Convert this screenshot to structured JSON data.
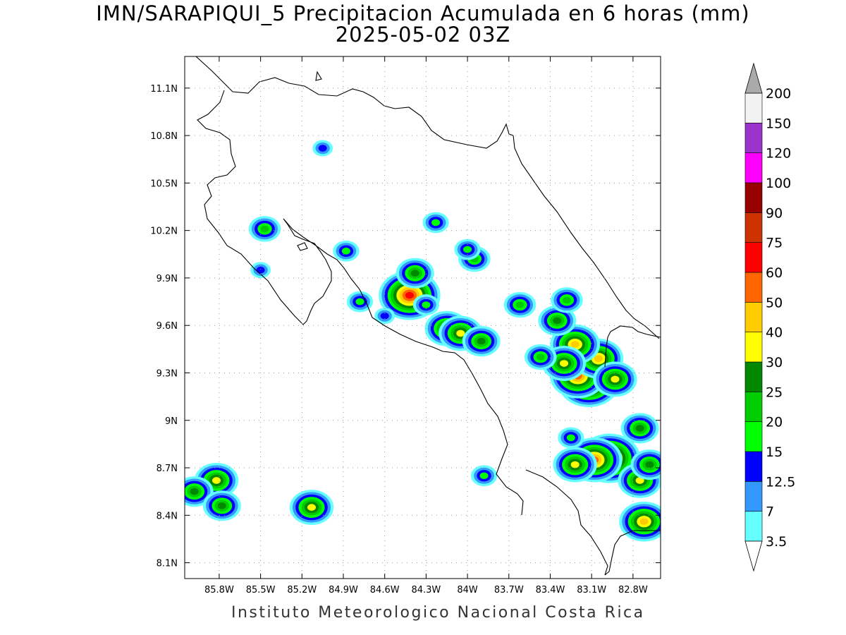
{
  "title": {
    "line1": "IMN/SARAPIQUI_5 Precipitacion Acumulada en 6 horas (mm)",
    "line2": "2025-05-02 03Z"
  },
  "footer": "Instituto Meteorologico Nacional Costa Rica",
  "map": {
    "lon_range": [
      -86.05,
      -82.6
    ],
    "lat_range": [
      8.0,
      11.3
    ],
    "lon_ticks": [
      {
        "v": -85.8,
        "label": "85.8W"
      },
      {
        "v": -85.5,
        "label": "85.5W"
      },
      {
        "v": -85.2,
        "label": "85.2W"
      },
      {
        "v": -84.9,
        "label": "84.9W"
      },
      {
        "v": -84.6,
        "label": "84.6W"
      },
      {
        "v": -84.3,
        "label": "84.3W"
      },
      {
        "v": -84.0,
        "label": "84W"
      },
      {
        "v": -83.7,
        "label": "83.7W"
      },
      {
        "v": -83.4,
        "label": "83.4W"
      },
      {
        "v": -83.1,
        "label": "83.1W"
      },
      {
        "v": -82.8,
        "label": "82.8W"
      }
    ],
    "lat_ticks": [
      {
        "v": 11.1,
        "label": "11.1N"
      },
      {
        "v": 10.8,
        "label": "10.8N"
      },
      {
        "v": 10.5,
        "label": "10.5N"
      },
      {
        "v": 10.2,
        "label": "10.2N"
      },
      {
        "v": 9.9,
        "label": "9.9N"
      },
      {
        "v": 9.6,
        "label": "9.6N"
      },
      {
        "v": 9.3,
        "label": "9.3N"
      },
      {
        "v": 9.0,
        "label": "9N"
      },
      {
        "v": 8.7,
        "label": "8.7N"
      },
      {
        "v": 8.4,
        "label": "8.4N"
      },
      {
        "v": 8.1,
        "label": "8.1N"
      }
    ],
    "grid": "dotted"
  },
  "colorbar": {
    "levels": [
      {
        "label": "3.5",
        "color": "#66ffff"
      },
      {
        "label": "7",
        "color": "#3399ff"
      },
      {
        "label": "12.5",
        "color": "#0000ff"
      },
      {
        "label": "15",
        "color": "#00ff00"
      },
      {
        "label": "20",
        "color": "#00cc00"
      },
      {
        "label": "25",
        "color": "#008800"
      },
      {
        "label": "30",
        "color": "#ffff00"
      },
      {
        "label": "40",
        "color": "#ffcc00"
      },
      {
        "label": "50",
        "color": "#ff6600"
      },
      {
        "label": "60",
        "color": "#ff0000"
      },
      {
        "label": "75",
        "color": "#cc3300"
      },
      {
        "label": "90",
        "color": "#990000"
      },
      {
        "label": "100",
        "color": "#ff00ff"
      },
      {
        "label": "120",
        "color": "#9933cc"
      },
      {
        "label": "150",
        "color": "#f2f2f2"
      },
      {
        "label": "200",
        "color": "#aaaaaa"
      }
    ]
  },
  "cells": [
    {
      "lon": -83.12,
      "lat": 9.24,
      "level": 9
    },
    {
      "lon": -83.2,
      "lat": 9.28,
      "level": 8
    },
    {
      "lon": -83.05,
      "lat": 9.39,
      "level": 7
    },
    {
      "lon": -83.22,
      "lat": 9.48,
      "level": 7
    },
    {
      "lon": -83.3,
      "lat": 9.36,
      "level": 6
    },
    {
      "lon": -82.97,
      "lat": 8.76,
      "level": 9
    },
    {
      "lon": -83.08,
      "lat": 8.75,
      "level": 8
    },
    {
      "lon": -83.22,
      "lat": 8.72,
      "level": 6
    },
    {
      "lon": -82.93,
      "lat": 9.26,
      "level": 6
    },
    {
      "lon": -82.72,
      "lat": 8.36,
      "level": 7
    },
    {
      "lon": -82.75,
      "lat": 8.62,
      "level": 6
    },
    {
      "lon": -82.68,
      "lat": 8.72,
      "level": 5
    },
    {
      "lon": -82.75,
      "lat": 8.95,
      "level": 5
    },
    {
      "lon": -84.42,
      "lat": 9.79,
      "level": 9
    },
    {
      "lon": -84.38,
      "lat": 9.93,
      "level": 5
    },
    {
      "lon": -84.15,
      "lat": 9.58,
      "level": 6
    },
    {
      "lon": -84.05,
      "lat": 9.55,
      "level": 6
    },
    {
      "lon": -83.9,
      "lat": 9.5,
      "level": 5
    },
    {
      "lon": -83.95,
      "lat": 10.02,
      "level": 4
    },
    {
      "lon": -83.62,
      "lat": 9.73,
      "level": 4
    },
    {
      "lon": -83.35,
      "lat": 9.63,
      "level": 5
    },
    {
      "lon": -83.28,
      "lat": 9.76,
      "level": 4
    },
    {
      "lon": -85.82,
      "lat": 8.62,
      "level": 6
    },
    {
      "lon": -85.98,
      "lat": 8.55,
      "level": 5
    },
    {
      "lon": -85.78,
      "lat": 8.46,
      "level": 5
    },
    {
      "lon": -85.13,
      "lat": 8.45,
      "level": 6
    },
    {
      "lon": -85.47,
      "lat": 10.21,
      "level": 4
    },
    {
      "lon": -84.23,
      "lat": 10.25,
      "level": 3
    },
    {
      "lon": -84.88,
      "lat": 10.07,
      "level": 3
    },
    {
      "lon": -84.78,
      "lat": 9.75,
      "level": 3
    },
    {
      "lon": -84.0,
      "lat": 10.08,
      "level": 3
    },
    {
      "lon": -83.47,
      "lat": 9.4,
      "level": 4
    },
    {
      "lon": -83.25,
      "lat": 8.89,
      "level": 3
    },
    {
      "lon": -83.88,
      "lat": 8.65,
      "level": 3
    },
    {
      "lon": -85.5,
      "lat": 9.95,
      "level": 2
    },
    {
      "lon": -85.05,
      "lat": 10.72,
      "level": 2
    },
    {
      "lon": -84.6,
      "lat": 9.66,
      "level": 2
    },
    {
      "lon": -84.3,
      "lat": 9.73,
      "level": 3
    }
  ]
}
